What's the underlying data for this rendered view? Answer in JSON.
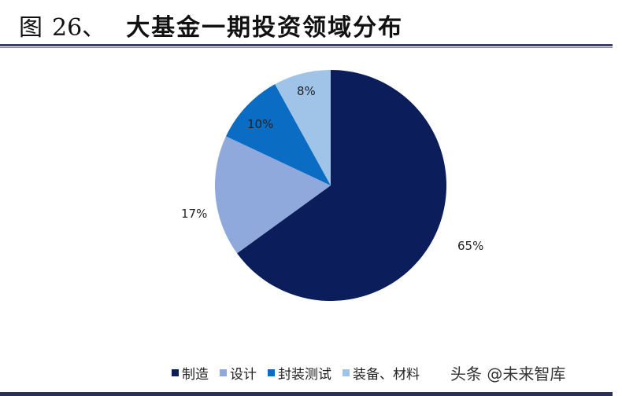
{
  "title": {
    "prefix": "图",
    "number": "26、",
    "text": "大基金一期投资领域分布"
  },
  "chart_data": {
    "type": "pie",
    "title": "大基金一期投资领域分布",
    "categories": [
      "制造",
      "设计",
      "封装测试",
      "装备、材料"
    ],
    "values": [
      65,
      17,
      10,
      8
    ],
    "labels": [
      "65%",
      "17%",
      "10%",
      "8%"
    ],
    "colors": [
      "#0b1e5b",
      "#8fa9dc",
      "#0a6cc2",
      "#9fc4e8"
    ],
    "legend_position": "bottom",
    "start_angle": "12 o'clock, clockwise"
  },
  "legend": [
    {
      "label": "制造",
      "color": "#0b1e5b"
    },
    {
      "label": "设计",
      "color": "#8fa9dc"
    },
    {
      "label": "封装测试",
      "color": "#0a6cc2"
    },
    {
      "label": "装备、材料",
      "color": "#9fc4e8"
    }
  ],
  "watermark": "头条 @未来智库"
}
